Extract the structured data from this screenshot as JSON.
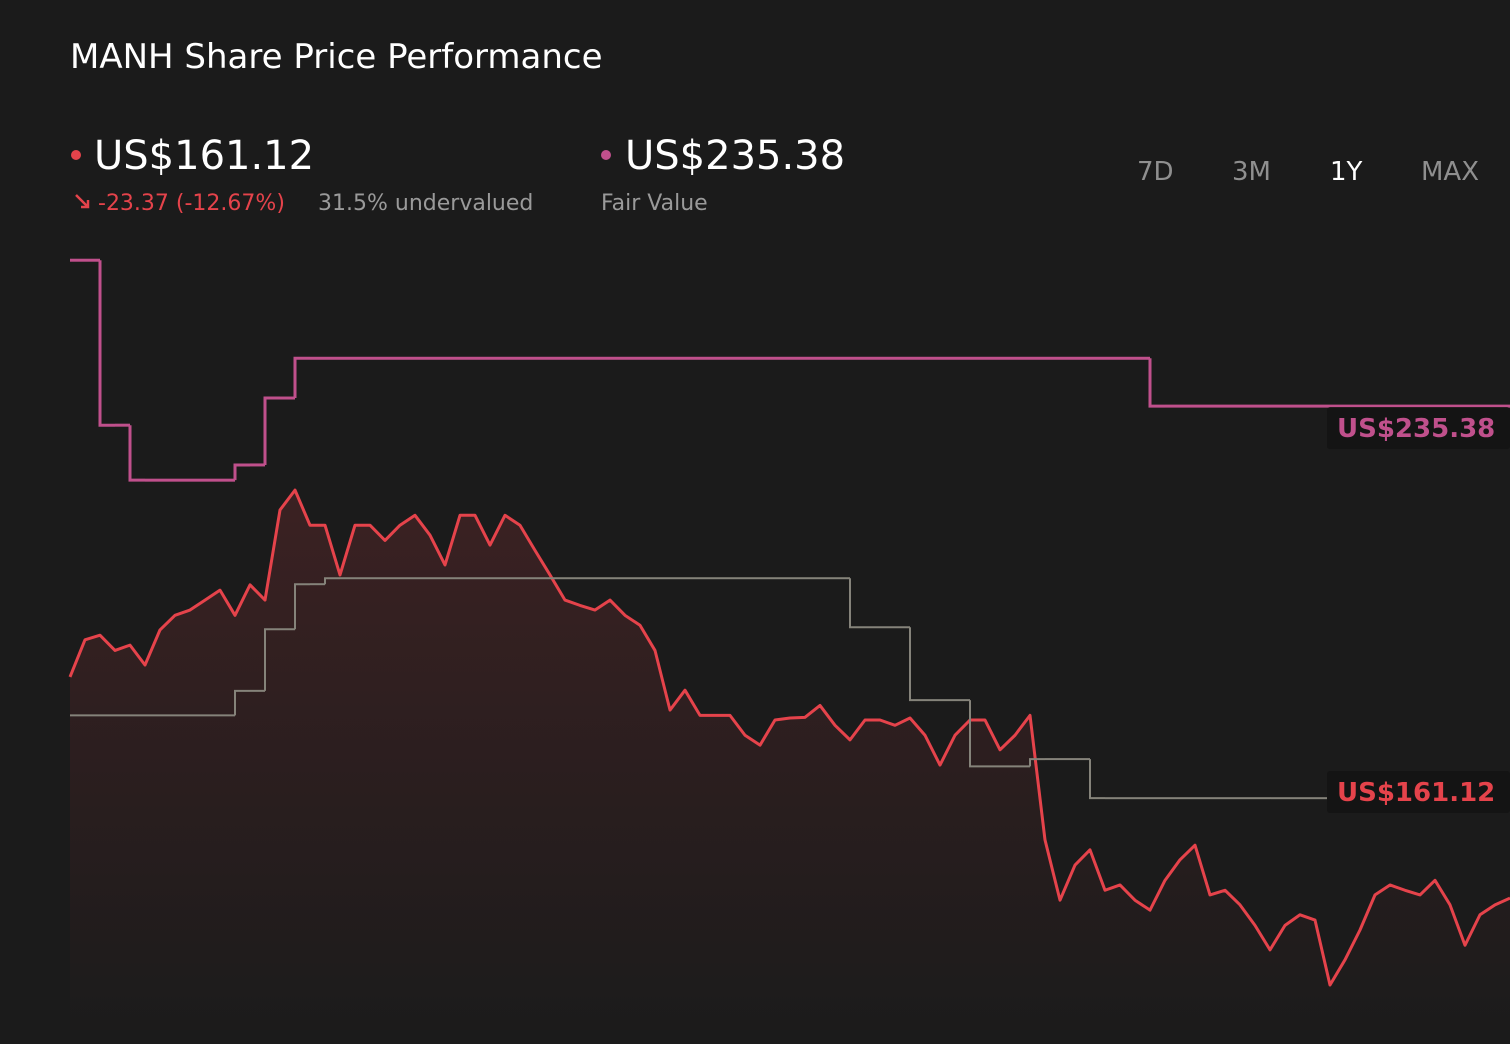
{
  "chart_data": {
    "type": "line",
    "title": "MANH Share Price Performance",
    "current_price": "US$161.12",
    "change": "-23.37 (-12.67%)",
    "valuation": "31.5% undervalued",
    "fair_value": "US$235.38",
    "fair_value_label": "Fair Value",
    "ranges": [
      "7D",
      "3M",
      "1Y",
      "MAX"
    ],
    "active_range": "1Y",
    "ylim": [
      140,
      260
    ],
    "series": [
      {
        "color": "#e5434b",
        "area": true,
        "values": [
          194.5,
          200.1,
          200.8,
          198.5,
          199.3,
          196.3,
          201.6,
          203.8,
          204.6,
          206.1,
          207.6,
          203.8,
          208.4,
          206.1,
          219.7,
          222.7,
          217.4,
          217.4,
          209.9,
          217.4,
          217.4,
          215.1,
          217.4,
          218.9,
          215.9,
          211.4,
          218.9,
          218.9,
          214.4,
          218.9,
          217.4,
          213.6,
          209.9,
          206.1,
          205.3,
          204.6,
          206.1,
          203.8,
          202.3,
          198.5,
          189.5,
          192.5,
          188.7,
          188.7,
          188.7,
          185.7,
          184.2,
          188.0,
          188.3,
          188.4,
          190.2,
          187.2,
          185.0,
          188.0,
          188.0,
          187.2,
          188.3,
          185.7,
          181.2,
          185.7,
          188.0,
          188.0,
          183.5,
          185.7,
          188.7,
          169.9,
          160.8,
          166.1,
          168.4,
          162.3,
          163.1,
          160.8,
          159.3,
          163.8,
          166.9,
          169.1,
          161.6,
          162.3,
          160.1,
          157.0,
          153.3,
          157.0,
          158.6,
          157.8,
          148.0,
          151.8,
          156.3,
          161.6,
          163.1,
          162.3,
          161.6,
          163.8,
          160.1,
          154.0,
          158.6,
          160.1,
          161.12
        ]
      },
      {
        "color": "#c0508c",
        "step": true,
        "values": [
          257.4,
          257.4,
          232.5,
          232.5,
          224.2,
          224.2,
          224.2,
          224.2,
          224.2,
          224.2,
          224.2,
          226.5,
          226.5,
          236.6,
          236.6,
          242.6,
          242.6,
          242.6,
          242.6,
          242.6,
          242.6,
          242.6,
          242.6,
          242.6,
          242.6,
          242.6,
          242.6,
          242.6,
          242.6,
          242.6,
          242.6,
          242.6,
          242.6,
          242.6,
          242.6,
          242.6,
          242.6,
          242.6,
          242.6,
          242.6,
          242.6,
          242.6,
          242.6,
          242.6,
          242.6,
          242.6,
          242.6,
          242.6,
          242.6,
          242.6,
          242.6,
          242.6,
          242.6,
          242.6,
          242.6,
          242.6,
          242.6,
          242.6,
          242.6,
          242.6,
          242.6,
          242.6,
          242.6,
          242.6,
          242.6,
          242.6,
          242.6,
          242.6,
          242.6,
          242.6,
          242.6,
          242.6,
          235.38,
          235.38,
          235.38,
          235.38,
          235.38,
          235.38,
          235.38,
          235.38,
          235.38,
          235.38,
          235.38,
          235.38,
          235.38,
          235.38,
          235.38,
          235.38,
          235.38,
          235.38,
          235.38,
          235.38,
          235.38,
          235.38,
          235.38,
          235.38,
          235.38
        ]
      },
      {
        "color": "#85837a",
        "step": true,
        "values": [
          188.7,
          188.7,
          188.7,
          188.7,
          188.7,
          188.7,
          188.7,
          188.7,
          188.7,
          188.7,
          188.7,
          192.4,
          192.4,
          201.7,
          201.7,
          208.5,
          208.5,
          209.4,
          209.4,
          209.4,
          209.4,
          209.4,
          209.4,
          209.4,
          209.4,
          209.4,
          209.4,
          209.4,
          209.4,
          209.4,
          209.4,
          209.4,
          209.4,
          209.4,
          209.4,
          209.4,
          209.4,
          209.4,
          209.4,
          209.4,
          209.4,
          209.4,
          209.4,
          209.4,
          209.4,
          209.4,
          209.4,
          209.4,
          209.4,
          209.4,
          209.4,
          209.4,
          202.0,
          202.0,
          202.0,
          202.0,
          191.0,
          191.0,
          191.0,
          191.0,
          181.0,
          181.0,
          181.0,
          181.0,
          182.1,
          182.1,
          182.1,
          182.1,
          176.2,
          176.2,
          176.2,
          176.2,
          176.2,
          176.2,
          176.2,
          176.2,
          176.2,
          176.2,
          176.2,
          176.2,
          176.2,
          176.2,
          176.2,
          176.2,
          176.2,
          null,
          null,
          null,
          null,
          null,
          null,
          null,
          null,
          null,
          null,
          null,
          null
        ]
      }
    ]
  }
}
